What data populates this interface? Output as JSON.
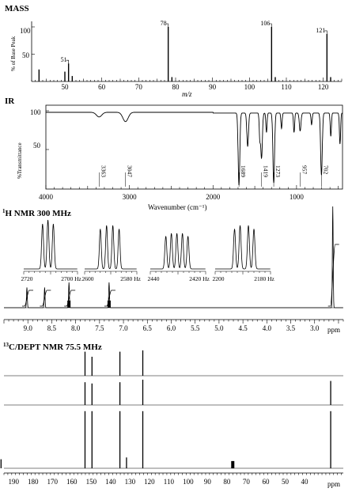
{
  "mass": {
    "title": "MASS",
    "ylabel": "% of Base Peak",
    "xlabel": "m/z",
    "y_ticks": [
      "100",
      "50"
    ],
    "x_ticks": [
      50,
      60,
      70,
      80,
      90,
      100,
      110,
      120
    ],
    "peak_labels": [
      {
        "mz": 51,
        "text": "51"
      },
      {
        "mz": 78,
        "text": "78"
      },
      {
        "mz": 106,
        "text": "106"
      },
      {
        "mz": 121,
        "text": "121"
      }
    ]
  },
  "ir": {
    "title": "IR",
    "ylabel": "%Transmittance",
    "xlabel": "Wavenumber (cm⁻¹)",
    "y_ticks": [
      "100",
      "50"
    ],
    "x_ticks": [
      4000,
      3000,
      2000,
      1000
    ],
    "band_labels": [
      "3363",
      "3047",
      "1689",
      "1419",
      "1273",
      "957",
      "702"
    ]
  },
  "hnmr": {
    "title_sup": "1",
    "title": "H NMR 300 MHz",
    "xlabel": "ppm",
    "x_ticks": [
      "9.0",
      "8.5",
      "8.0",
      "7.5",
      "7.0",
      "6.5",
      "6.0",
      "5.5",
      "5.0",
      "4.5",
      "4.0",
      "3.5",
      "3.0"
    ],
    "insets": [
      {
        "ticks": [
          "2720",
          "2700 Hz"
        ]
      },
      {
        "ticks": [
          "2600",
          "2580 Hz"
        ]
      },
      {
        "ticks": [
          "2440",
          "2420 Hz"
        ]
      },
      {
        "ticks": [
          "2200",
          "2180 Hz"
        ]
      }
    ]
  },
  "cnmr": {
    "title_sup": "13",
    "title": "C/DEPT NMR 75.5 MHz",
    "xlabel": "ppm",
    "x_ticks": [
      "190",
      "180",
      "170",
      "160",
      "150",
      "140",
      "130",
      "120",
      "110",
      "100",
      "90",
      "80",
      "70",
      "60",
      "50",
      "40"
    ]
  },
  "chart_data": [
    {
      "type": "bar",
      "name": "mass-spectrum",
      "x_unit": "m/z",
      "xlim": [
        41,
        125
      ],
      "ylim": [
        0,
        100
      ],
      "x": [
        43,
        50,
        51,
        52,
        78,
        79,
        106,
        107,
        121,
        122
      ],
      "values": [
        22,
        18,
        33,
        10,
        100,
        8,
        100,
        8,
        87,
        8
      ]
    },
    {
      "type": "line",
      "name": "ir-spectrum",
      "xlim": [
        4000,
        450
      ],
      "ylim": [
        0,
        100
      ],
      "bands": [
        {
          "x": 3363,
          "min_T": 92
        },
        {
          "x": 3047,
          "min_T": 86
        },
        {
          "x": 1689,
          "min_T": 5
        },
        {
          "x": 1585,
          "min_T": 55
        },
        {
          "x": 1419,
          "min_T": 40
        },
        {
          "x": 1273,
          "min_T": 8
        },
        {
          "x": 957,
          "min_T": 75
        },
        {
          "x": 702,
          "min_T": 18
        }
      ]
    },
    {
      "type": "line",
      "name": "h-nmr-spectrum",
      "xlim": [
        9.5,
        2.4
      ],
      "peaks": [
        {
          "ppm": 9.02,
          "h": 0.2
        },
        {
          "ppm": 8.65,
          "h": 0.2
        },
        {
          "ppm": 8.14,
          "h": 0.25
        },
        {
          "ppm": 7.3,
          "h": 0.25
        },
        {
          "ppm": 2.62,
          "h": 1.0
        }
      ]
    },
    {
      "type": "bar",
      "name": "c-nmr-dept",
      "xlim": [
        195,
        20
      ],
      "rows": [
        {
          "name": "DEPT-90",
          "ppm": [
            153.2,
            149.6,
            135.2,
            123.4
          ],
          "values": [
            0.95,
            0.75,
            0.95,
            1.0
          ]
        },
        {
          "name": "DEPT-135",
          "ppm": [
            153.2,
            149.6,
            135.2,
            123.4,
            26.5
          ],
          "values": [
            0.9,
            0.85,
            0.9,
            1.0,
            0.95
          ]
        },
        {
          "name": "broadband",
          "ppm": [
            196.5,
            153.2,
            149.6,
            135.2,
            131.8,
            123.4,
            77.0,
            26.5
          ],
          "values": [
            0.15,
            0.95,
            0.95,
            0.95,
            0.18,
            0.95,
            0.12,
            0.95
          ]
        }
      ]
    }
  ]
}
